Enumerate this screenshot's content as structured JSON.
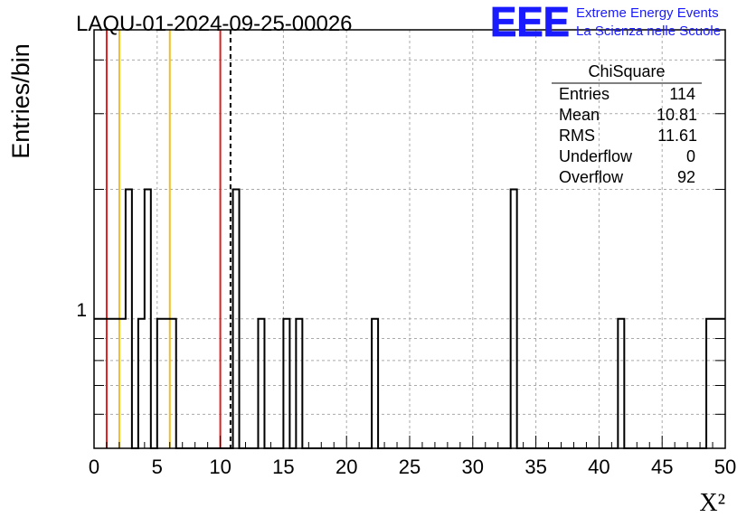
{
  "chart_data": {
    "type": "histogram",
    "title": "LAQU-01-2024-09-25-00026",
    "xlabel": "X²",
    "ylabel": "Entries/bin",
    "xlim": [
      0,
      50
    ],
    "ylog": true,
    "ylim": [
      0.5,
      4.7
    ],
    "xticks": [
      0,
      5,
      10,
      15,
      20,
      25,
      30,
      35,
      40,
      45,
      50
    ],
    "xtick_labels": [
      "0",
      "5",
      "10",
      "15",
      "20",
      "25",
      "30",
      "35",
      "40",
      "45",
      "50"
    ],
    "ytick_labels": [
      "1"
    ],
    "grid": true,
    "bin_width": 0.5,
    "bins": [
      {
        "x0": 0,
        "x1": 2.5,
        "count": 1
      },
      {
        "x0": 2.5,
        "x1": 3.0,
        "count": 2
      },
      {
        "x0": 3.5,
        "x1": 4.0,
        "count": 1
      },
      {
        "x0": 4.0,
        "x1": 4.5,
        "count": 2
      },
      {
        "x0": 5.0,
        "x1": 6.5,
        "count": 1
      },
      {
        "x0": 11.0,
        "x1": 11.5,
        "count": 2
      },
      {
        "x0": 13.0,
        "x1": 13.5,
        "count": 1
      },
      {
        "x0": 15.0,
        "x1": 15.5,
        "count": 1
      },
      {
        "x0": 16.0,
        "x1": 16.5,
        "count": 1
      },
      {
        "x0": 22.0,
        "x1": 22.5,
        "count": 1
      },
      {
        "x0": 33.0,
        "x1": 33.5,
        "count": 2
      },
      {
        "x0": 41.5,
        "x1": 42.0,
        "count": 1
      },
      {
        "x0": 48.5,
        "x1": 50.0,
        "count": 1
      }
    ],
    "vlines": [
      {
        "x": 1,
        "color": "#e02020"
      },
      {
        "x": 2,
        "color": "#f0c020"
      },
      {
        "x": 6,
        "color": "#f0c020"
      },
      {
        "x": 10,
        "color": "#e02020"
      },
      {
        "x": 10.81,
        "color": "#000000",
        "dashed": true
      }
    ],
    "stats": {
      "title": "ChiSquare",
      "rows": [
        {
          "label": "Entries",
          "value": "114"
        },
        {
          "label": "Mean",
          "value": "10.81"
        },
        {
          "label": "RMS",
          "value": "11.61"
        },
        {
          "label": "Underflow",
          "value": "0"
        },
        {
          "label": "Overflow",
          "value": "92"
        }
      ]
    }
  },
  "logo": {
    "text": "EEE",
    "line1": "Extreme Energy Events",
    "line2": "La Scienza nelle Scuole",
    "color": "#1a1aff"
  }
}
